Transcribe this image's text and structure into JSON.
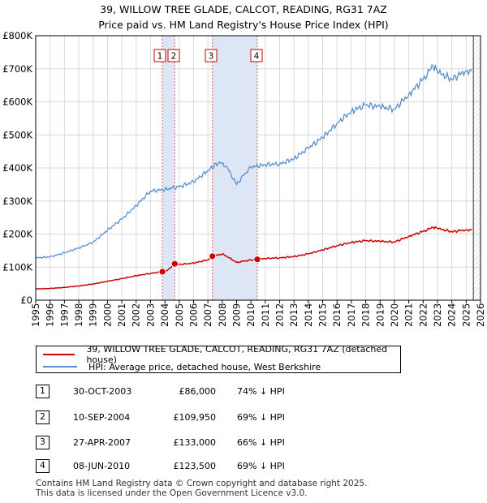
{
  "title_line1": "39, WILLOW TREE GLADE, CALCOT, READING, RG31 7AZ",
  "title_line2": "Price paid vs. HM Land Registry's House Price Index (HPI)",
  "chart_data": {
    "type": "line",
    "title": "39, WILLOW TREE GLADE, CALCOT, READING, RG31 7AZ — Price paid vs. HM Land Registry's House Price Index (HPI)",
    "xlim": [
      1995,
      2026
    ],
    "ylim": [
      0,
      800000
    ],
    "x_ticks": [
      1995,
      1996,
      1997,
      1998,
      1999,
      2000,
      2001,
      2002,
      2003,
      2004,
      2005,
      2006,
      2007,
      2008,
      2009,
      2010,
      2011,
      2012,
      2013,
      2014,
      2015,
      2016,
      2017,
      2018,
      2019,
      2020,
      2021,
      2022,
      2023,
      2024,
      2025,
      2026
    ],
    "y_ticks": [
      0,
      100000,
      200000,
      300000,
      400000,
      500000,
      600000,
      700000,
      800000
    ],
    "y_tick_labels": [
      "£0",
      "£100K",
      "£200K",
      "£300K",
      "£400K",
      "£500K",
      "£600K",
      "£700K",
      "£800K"
    ],
    "grid": true,
    "colors": {
      "property": "#cc0000",
      "hpi": "#5b8fcf",
      "sale_band": "#dde6f5",
      "sale_line": "#e06060",
      "hatch": "#999999"
    },
    "series": [
      {
        "name": "39, WILLOW TREE GLADE, CALCOT, READING, RG31 7AZ (detached house)",
        "color": "#cc0000",
        "points": [
          [
            1995,
            34000
          ],
          [
            1996,
            35500
          ],
          [
            1997,
            38500
          ],
          [
            1998,
            43000
          ],
          [
            1999,
            49000
          ],
          [
            2000,
            57000
          ],
          [
            2001,
            65000
          ],
          [
            2002,
            74000
          ],
          [
            2003,
            81000
          ],
          [
            2003.83,
            86000
          ],
          [
            2004,
            84000
          ],
          [
            2004.69,
            109950
          ],
          [
            2005,
            108000
          ],
          [
            2006,
            112000
          ],
          [
            2007,
            122000
          ],
          [
            2007.32,
            133000
          ],
          [
            2008,
            140000
          ],
          [
            2008.5,
            128000
          ],
          [
            2009,
            114000
          ],
          [
            2009.5,
            118000
          ],
          [
            2010,
            121000
          ],
          [
            2010.44,
            123500
          ],
          [
            2011,
            126000
          ],
          [
            2012,
            128000
          ],
          [
            2013,
            132000
          ],
          [
            2014,
            140000
          ],
          [
            2015,
            152000
          ],
          [
            2016,
            165000
          ],
          [
            2017,
            175000
          ],
          [
            2018,
            180000
          ],
          [
            2019,
            178000
          ],
          [
            2020,
            176000
          ],
          [
            2021,
            193000
          ],
          [
            2022,
            208000
          ],
          [
            2022.7,
            220000
          ],
          [
            2023,
            217000
          ],
          [
            2024,
            207000
          ],
          [
            2025,
            213000
          ],
          [
            2025.4,
            212000
          ]
        ]
      },
      {
        "name": "HPI: Average price, detached house, West Berkshire",
        "color": "#5b8fcf",
        "points": [
          [
            1995,
            128000
          ],
          [
            1996,
            131000
          ],
          [
            1997,
            143000
          ],
          [
            1998,
            158000
          ],
          [
            1999,
            175000
          ],
          [
            2000,
            212000
          ],
          [
            2001,
            245000
          ],
          [
            2002,
            286000
          ],
          [
            2003,
            330000
          ],
          [
            2004,
            335000
          ],
          [
            2005,
            343000
          ],
          [
            2006,
            358000
          ],
          [
            2007,
            392000
          ],
          [
            2007.8,
            418000
          ],
          [
            2008.3,
            405000
          ],
          [
            2009,
            350000
          ],
          [
            2009.5,
            378000
          ],
          [
            2010,
            402000
          ],
          [
            2011,
            410000
          ],
          [
            2012,
            412000
          ],
          [
            2013,
            428000
          ],
          [
            2014,
            460000
          ],
          [
            2015,
            492000
          ],
          [
            2016,
            535000
          ],
          [
            2017,
            572000
          ],
          [
            2018,
            590000
          ],
          [
            2019,
            585000
          ],
          [
            2020,
            578000
          ],
          [
            2021,
            622000
          ],
          [
            2022,
            668000
          ],
          [
            2022.7,
            708000
          ],
          [
            2023,
            690000
          ],
          [
            2024,
            668000
          ],
          [
            2025,
            695000
          ],
          [
            2025.4,
            692000
          ]
        ]
      }
    ],
    "sale_markers": [
      {
        "label": "1",
        "x": 2003.83,
        "y": 86000
      },
      {
        "label": "2",
        "x": 2004.69,
        "y": 109950
      },
      {
        "label": "3",
        "x": 2007.32,
        "y": 133000
      },
      {
        "label": "4",
        "x": 2010.44,
        "y": 123500
      }
    ],
    "hatched_from": 2025.5
  },
  "legend": {
    "property_label": "39, WILLOW TREE GLADE, CALCOT, READING, RG31 7AZ (detached house)",
    "hpi_label": "HPI: Average price, detached house, West Berkshire"
  },
  "sales": [
    {
      "num": "1",
      "date": "30-OCT-2003",
      "price": "£86,000",
      "hpi": "74% ↓ HPI"
    },
    {
      "num": "2",
      "date": "10-SEP-2004",
      "price": "£109,950",
      "hpi": "69% ↓ HPI"
    },
    {
      "num": "3",
      "date": "27-APR-2007",
      "price": "£133,000",
      "hpi": "66% ↓ HPI"
    },
    {
      "num": "4",
      "date": "08-JUN-2010",
      "price": "£123,500",
      "hpi": "69% ↓ HPI"
    }
  ],
  "footer": {
    "line1": "Contains HM Land Registry data © Crown copyright and database right 2025.",
    "line2": "This data is licensed under the Open Government Licence v3.0."
  }
}
